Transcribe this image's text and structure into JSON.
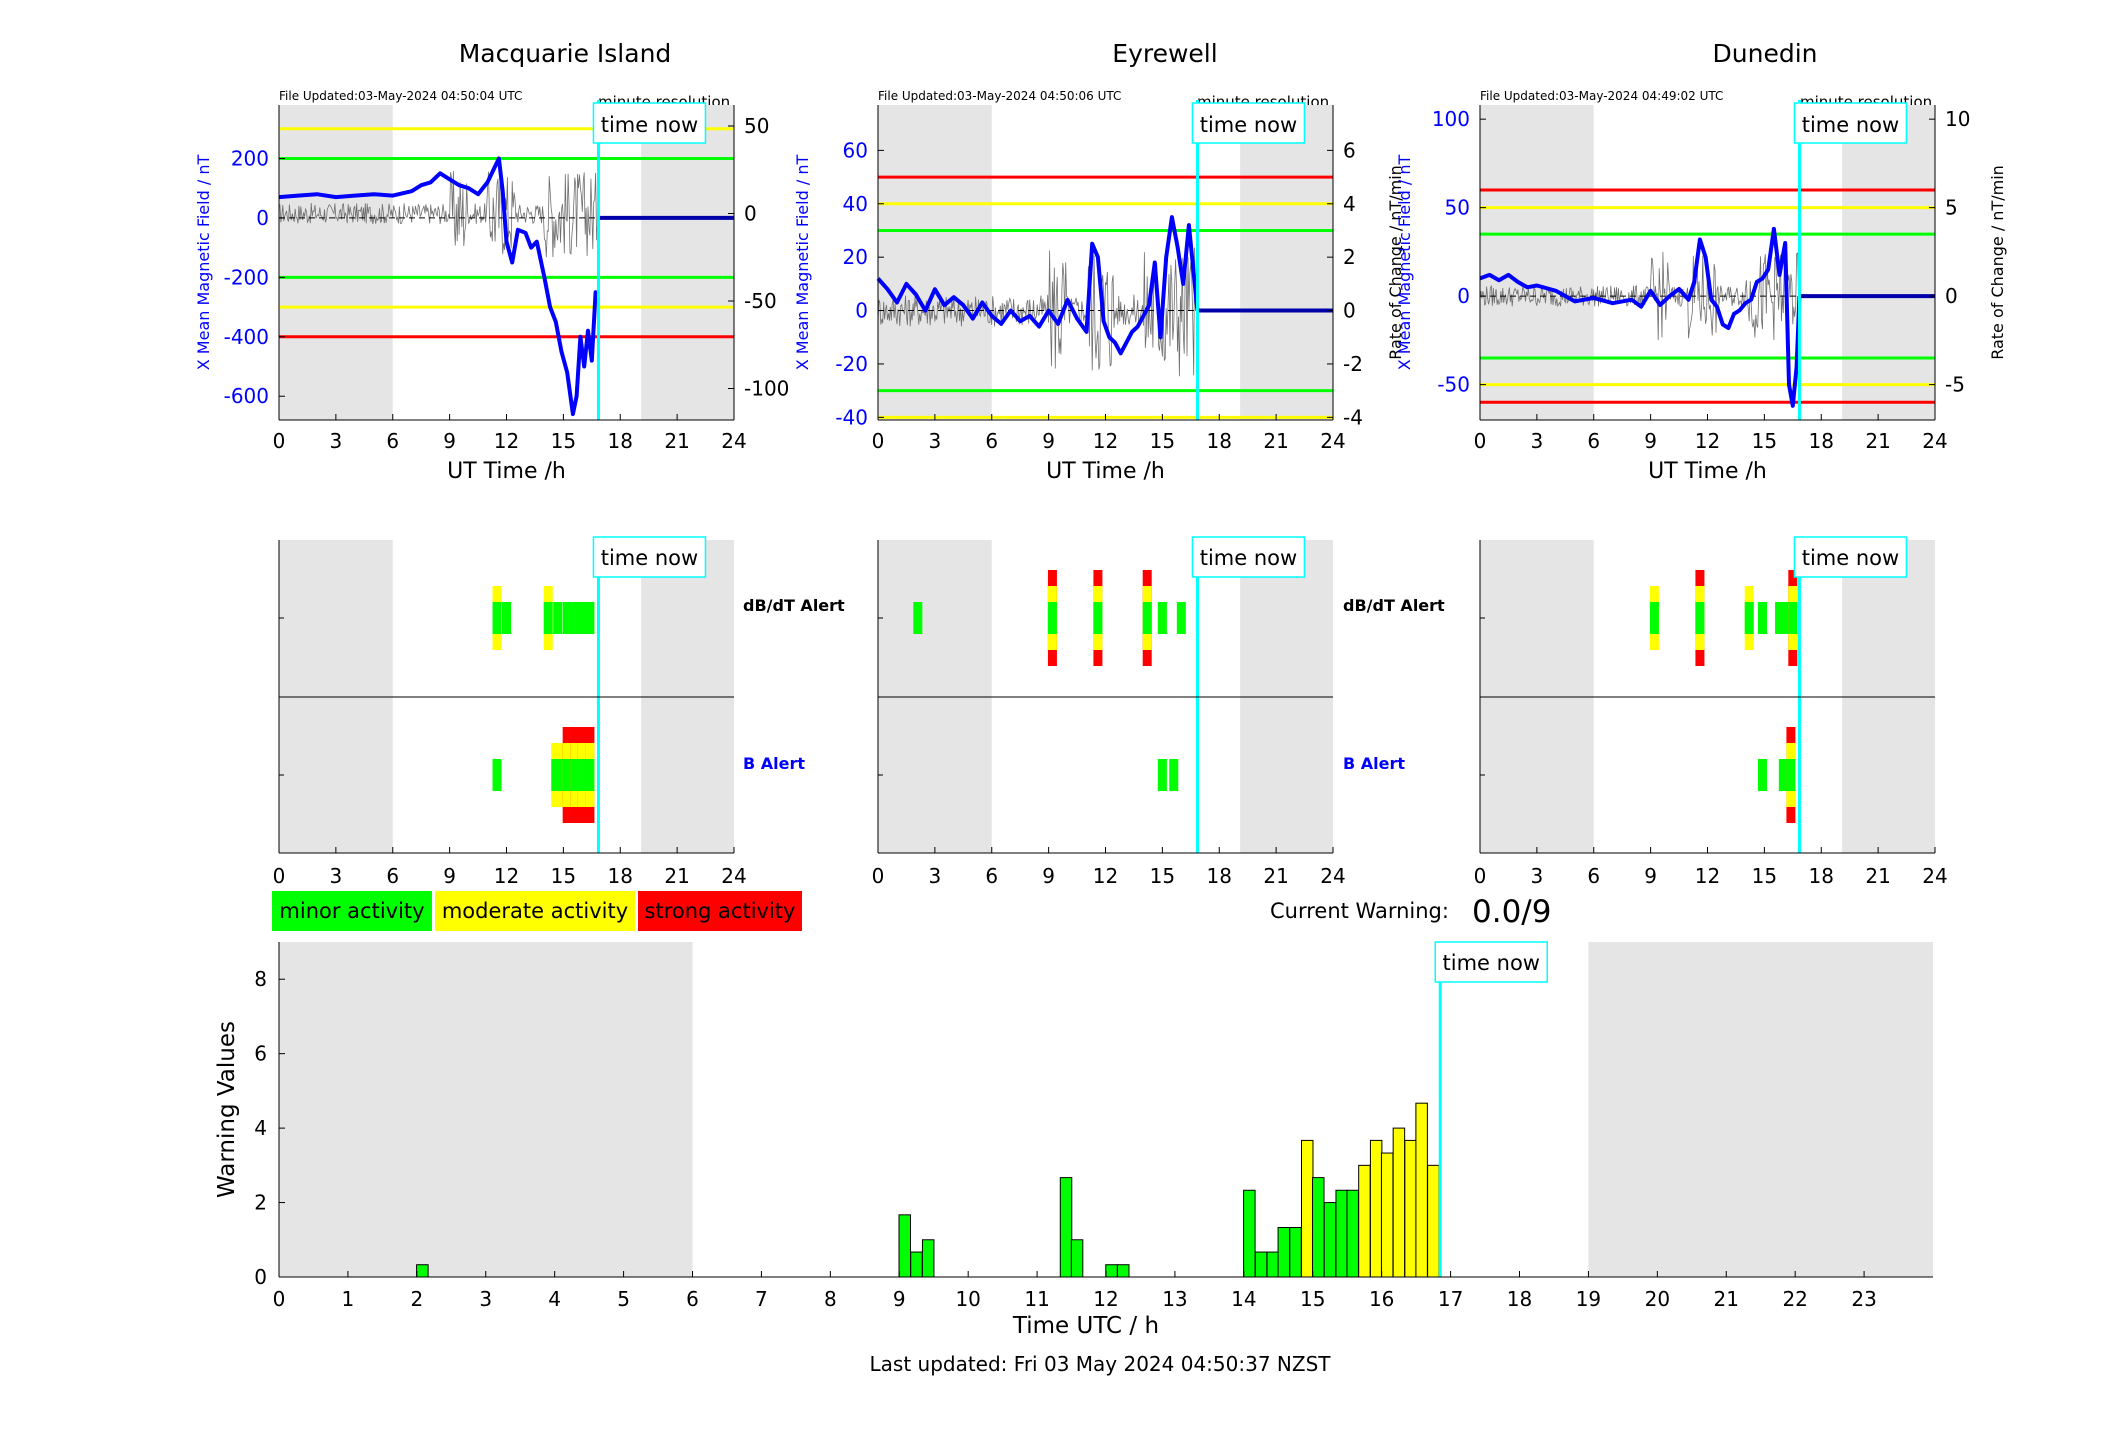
{
  "footer": {
    "last_updated": "Last updated: Fri 03 May 2024 04:50:37 NZST"
  },
  "current_warning": {
    "label": "Current Warning:",
    "value": "0.0/9"
  },
  "legend": [
    {
      "label": "minor activity",
      "color": "#00ff00"
    },
    {
      "label": "moderate activity",
      "color": "#ffff00"
    },
    {
      "label": "strong activity",
      "color": "#ff0000"
    }
  ],
  "colors": {
    "series_field": "#0000ff",
    "series_rate": "#707070",
    "time_now": "#00ffff",
    "night_shade": "#e5e5e5"
  },
  "chart_data": [
    {
      "type": "line",
      "station": "Macquarie Island",
      "file_updated": "File Updated:03-May-2024 04:50:04 UTC",
      "resolution": "minute resolution",
      "time_now_label": "time now",
      "time_now_h": 16.85,
      "xlabel": "UT Time /h",
      "xlim": [
        0,
        24
      ],
      "xticks": [
        0,
        3,
        6,
        9,
        12,
        15,
        18,
        21,
        24
      ],
      "ylabel_left": "X Mean Magnetic Field / nT",
      "ylim_left": [
        -680,
        380
      ],
      "yticks_left": [
        -600,
        -400,
        -200,
        0,
        200
      ],
      "ylabel_right": "",
      "ylim_right": [
        -118,
        62
      ],
      "yticks_right": [
        -100,
        -50,
        0,
        50
      ],
      "night_h": [
        [
          0,
          6
        ],
        [
          19.1,
          24
        ]
      ],
      "thresholds": [
        {
          "y": 300,
          "color": "#ffff00"
        },
        {
          "y": 200,
          "color": "#00ff00"
        },
        {
          "y": -200,
          "color": "#00ff00"
        },
        {
          "y": -300,
          "color": "#ffff00"
        },
        {
          "y": -400,
          "color": "#ff0000"
        }
      ],
      "series": [
        {
          "x": [
            0,
            1,
            2,
            3,
            4,
            5,
            6,
            7,
            7.5,
            8,
            8.5,
            9,
            9.5,
            10,
            10.5,
            11,
            11.3,
            11.6,
            11.8,
            12,
            12.3,
            12.6,
            13,
            13.3,
            13.6,
            14,
            14.3,
            14.6,
            14.9,
            15.2,
            15.5,
            15.7,
            15.9,
            16.1,
            16.3,
            16.5,
            16.7,
            16.85
          ],
          "y": [
            70,
            75,
            80,
            70,
            75,
            80,
            75,
            90,
            110,
            120,
            150,
            130,
            110,
            100,
            80,
            120,
            160,
            200,
            90,
            -80,
            -150,
            -40,
            -50,
            -100,
            -80,
            -200,
            -300,
            -350,
            -450,
            -520,
            -660,
            -600,
            -400,
            -500,
            -380,
            -480,
            -250,
            -280
          ]
        }
      ],
      "alerts": {
        "dbdt_label": "dB/dT Alert",
        "b_label": "B Alert",
        "dbdt": [
          {
            "x": 11.5,
            "level": 2
          },
          {
            "x": 12.0,
            "level": 1
          },
          {
            "x": 14.2,
            "level": 2
          },
          {
            "x": 14.7,
            "level": 1
          },
          {
            "x": 15.2,
            "level": 1
          },
          {
            "x": 15.6,
            "level": 1
          },
          {
            "x": 16.0,
            "level": 1
          },
          {
            "x": 16.4,
            "level": 1
          }
        ],
        "b": [
          {
            "x": 11.5,
            "level": 1
          },
          {
            "x": 14.6,
            "level": 2
          },
          {
            "x": 14.9,
            "level": 2
          },
          {
            "x": 15.2,
            "level": 3
          },
          {
            "x": 15.6,
            "level": 3
          },
          {
            "x": 16.0,
            "level": 3
          },
          {
            "x": 16.4,
            "level": 3
          }
        ]
      }
    },
    {
      "type": "line",
      "station": "Eyrewell",
      "file_updated": "File Updated:03-May-2024 04:50:06 UTC",
      "resolution": "minute resolution",
      "time_now_label": "time now",
      "time_now_h": 16.85,
      "xlabel": "UT Time /h",
      "xlim": [
        0,
        24
      ],
      "xticks": [
        0,
        3,
        6,
        9,
        12,
        15,
        18,
        21,
        24
      ],
      "ylabel_left": "X Mean Magnetic Field / nT",
      "ylim_left": [
        -41,
        77
      ],
      "yticks_left": [
        -40,
        -20,
        0,
        20,
        40,
        60
      ],
      "ylabel_right": "Rate of Change / nT/min",
      "ylim_right": [
        -4.1,
        7.7
      ],
      "yticks_right": [
        -4,
        -2,
        0,
        2,
        4,
        6
      ],
      "night_h": [
        [
          0,
          6
        ],
        [
          19.1,
          24
        ]
      ],
      "thresholds": [
        {
          "y": 50,
          "color": "#ff0000"
        },
        {
          "y": 40,
          "color": "#ffff00"
        },
        {
          "y": 30,
          "color": "#00ff00"
        },
        {
          "y": -30,
          "color": "#00ff00"
        },
        {
          "y": -40,
          "color": "#ffff00"
        }
      ],
      "series": [
        {
          "x": [
            0,
            0.5,
            1,
            1.5,
            2,
            2.5,
            3,
            3.5,
            4,
            4.5,
            5,
            5.5,
            6,
            6.5,
            7,
            7.5,
            8,
            8.5,
            9,
            9.5,
            10,
            10.5,
            11,
            11.3,
            11.6,
            11.9,
            12.2,
            12.5,
            12.8,
            13.1,
            13.4,
            13.7,
            14,
            14.3,
            14.6,
            14.9,
            15.2,
            15.5,
            15.8,
            16.1,
            16.4,
            16.85
          ],
          "y": [
            12,
            8,
            3,
            10,
            6,
            0,
            8,
            2,
            5,
            2,
            -3,
            3,
            -2,
            -5,
            0,
            -4,
            -2,
            -6,
            0,
            -5,
            4,
            -3,
            -8,
            25,
            20,
            -4,
            -10,
            -12,
            -16,
            -12,
            -8,
            -6,
            -2,
            2,
            18,
            -10,
            20,
            35,
            24,
            10,
            32,
            0
          ]
        }
      ],
      "alerts": {
        "dbdt_label": "dB/dT Alert",
        "b_label": "B Alert",
        "dbdt": [
          {
            "x": 2.1,
            "level": 1
          },
          {
            "x": 9.2,
            "level": 3
          },
          {
            "x": 11.6,
            "level": 3
          },
          {
            "x": 14.2,
            "level": 3
          },
          {
            "x": 15.0,
            "level": 1
          },
          {
            "x": 16.0,
            "level": 1
          }
        ],
        "b": [
          {
            "x": 15.0,
            "level": 1
          },
          {
            "x": 15.6,
            "level": 1
          }
        ]
      }
    },
    {
      "type": "line",
      "station": "Dunedin",
      "file_updated": "File Updated:03-May-2024 04:49:02 UTC",
      "resolution": "minute resolution",
      "time_now_label": "time now",
      "time_now_h": 16.85,
      "xlabel": "UT Time /h",
      "xlim": [
        0,
        24
      ],
      "xticks": [
        0,
        3,
        6,
        9,
        12,
        15,
        18,
        21,
        24
      ],
      "ylabel_left": "X Mean Magnetic Field / nT",
      "ylim_left": [
        -70,
        108
      ],
      "yticks_left": [
        -50,
        0,
        50,
        100
      ],
      "ylabel_right": "Rate of Change / nT/min",
      "ylim_right": [
        -7,
        10.8
      ],
      "yticks_right": [
        -5,
        0,
        5,
        10
      ],
      "night_h": [
        [
          0,
          6
        ],
        [
          19.1,
          24
        ]
      ],
      "thresholds": [
        {
          "y": 60,
          "color": "#ff0000"
        },
        {
          "y": 50,
          "color": "#ffff00"
        },
        {
          "y": 35,
          "color": "#00ff00"
        },
        {
          "y": -35,
          "color": "#00ff00"
        },
        {
          "y": -50,
          "color": "#ffff00"
        },
        {
          "y": -60,
          "color": "#ff0000"
        }
      ],
      "series": [
        {
          "x": [
            0,
            0.5,
            1,
            1.5,
            2,
            2.5,
            3,
            4,
            5,
            6,
            7,
            8,
            8.5,
            9,
            9.5,
            10,
            10.5,
            11,
            11.3,
            11.6,
            11.9,
            12.2,
            12.5,
            12.8,
            13.1,
            13.4,
            13.7,
            14,
            14.3,
            14.6,
            14.9,
            15.2,
            15.5,
            15.8,
            16.1,
            16.3,
            16.5,
            16.7,
            16.85
          ],
          "y": [
            10,
            12,
            9,
            12,
            8,
            5,
            6,
            3,
            -3,
            -1,
            -4,
            -2,
            -6,
            3,
            -5,
            0,
            4,
            -2,
            8,
            32,
            22,
            -2,
            -6,
            -16,
            -18,
            -10,
            -8,
            -4,
            -2,
            8,
            10,
            15,
            38,
            12,
            30,
            -50,
            -62,
            -40,
            0
          ]
        }
      ],
      "alerts": {
        "dbdt_label": "dB/dT Alert",
        "b_label": "B Alert",
        "dbdt": [
          {
            "x": 9.2,
            "level": 2
          },
          {
            "x": 11.6,
            "level": 3
          },
          {
            "x": 14.2,
            "level": 2
          },
          {
            "x": 14.9,
            "level": 1
          },
          {
            "x": 15.8,
            "level": 1
          },
          {
            "x": 16.2,
            "level": 1
          },
          {
            "x": 16.5,
            "level": 3
          }
        ],
        "b": [
          {
            "x": 14.9,
            "level": 1
          },
          {
            "x": 16.0,
            "level": 1
          },
          {
            "x": 16.4,
            "level": 3
          }
        ]
      }
    },
    {
      "type": "bar",
      "title": "",
      "xlabel": "Time UTC / h",
      "ylabel": "Warning Values",
      "xlim": [
        0,
        24
      ],
      "xticks": [
        0,
        1,
        2,
        3,
        4,
        5,
        6,
        7,
        8,
        9,
        10,
        11,
        12,
        13,
        14,
        15,
        16,
        17,
        18,
        19,
        20,
        21,
        22,
        23
      ],
      "ylim": [
        0,
        9
      ],
      "yticks": [
        0,
        2,
        4,
        6,
        8
      ],
      "night_h": [
        [
          0,
          6
        ],
        [
          19,
          24
        ]
      ],
      "time_now_label": "time now",
      "time_now_h": 16.85,
      "bar_width_h": 0.1667,
      "bars": [
        {
          "x": 2.08,
          "v": 0.33
        },
        {
          "x": 9.08,
          "v": 1.67
        },
        {
          "x": 9.25,
          "v": 0.67
        },
        {
          "x": 9.42,
          "v": 1.0
        },
        {
          "x": 11.42,
          "v": 2.67
        },
        {
          "x": 11.58,
          "v": 1.0
        },
        {
          "x": 12.08,
          "v": 0.33
        },
        {
          "x": 12.25,
          "v": 0.33
        },
        {
          "x": 14.08,
          "v": 2.33
        },
        {
          "x": 14.25,
          "v": 0.67
        },
        {
          "x": 14.42,
          "v": 0.67
        },
        {
          "x": 14.58,
          "v": 1.33
        },
        {
          "x": 14.75,
          "v": 1.33
        },
        {
          "x": 14.92,
          "v": 3.67
        },
        {
          "x": 15.08,
          "v": 2.67
        },
        {
          "x": 15.25,
          "v": 2.0
        },
        {
          "x": 15.42,
          "v": 2.33
        },
        {
          "x": 15.58,
          "v": 2.33
        },
        {
          "x": 15.75,
          "v": 3.0
        },
        {
          "x": 15.92,
          "v": 3.67
        },
        {
          "x": 16.08,
          "v": 3.33
        },
        {
          "x": 16.25,
          "v": 4.0
        },
        {
          "x": 16.42,
          "v": 3.67
        },
        {
          "x": 16.58,
          "v": 4.67
        },
        {
          "x": 16.75,
          "v": 3.0
        }
      ],
      "level_thresholds": {
        "moderate_from": 3
      }
    }
  ]
}
